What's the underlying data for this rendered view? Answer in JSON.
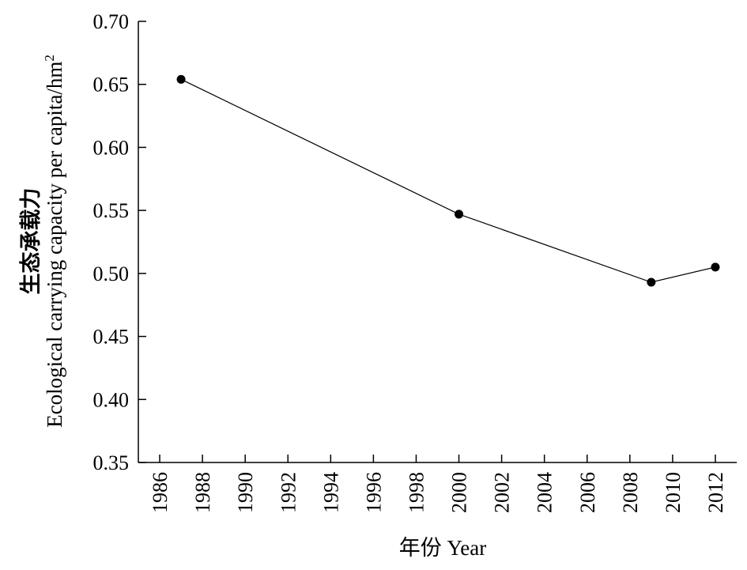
{
  "chart_data": {
    "type": "line",
    "x": [
      1987,
      2000,
      2009,
      2012
    ],
    "series": [
      {
        "values": [
          0.654,
          0.547,
          0.493,
          0.505
        ]
      }
    ],
    "xlim": [
      1985,
      2013
    ],
    "ylim": [
      0.35,
      0.7
    ],
    "x_ticks": [
      "1986",
      "1988",
      "1990",
      "1992",
      "1994",
      "1996",
      "1998",
      "2000",
      "2002",
      "2004",
      "2006",
      "2008",
      "2010",
      "2012"
    ],
    "y_ticks": [
      "0.35",
      "0.40",
      "0.45",
      "0.50",
      "0.55",
      "0.60",
      "0.65",
      "0.70"
    ],
    "xlabel": "年份 Year",
    "ylabel_line1": "生态承载力",
    "ylabel_line2": "Ecological carrying capacity per capita/hm",
    "ylabel_sup": "2",
    "grid": false,
    "marker": "filled-circle",
    "line_color": "#000000"
  }
}
